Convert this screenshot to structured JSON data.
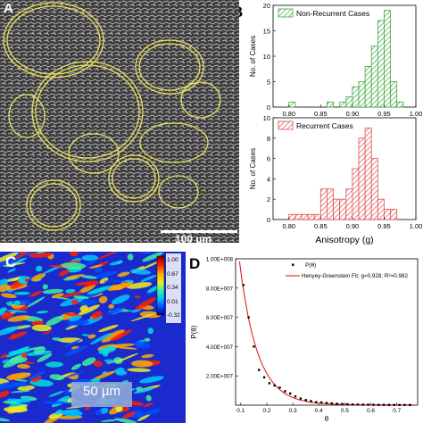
{
  "panel_a": {
    "label": "A",
    "scale_bar": "100 µm"
  },
  "panel_b": {
    "label": "B"
  },
  "panel_c": {
    "label": "C",
    "scale_bar": "50 µm",
    "colorbar": {
      "ticks": [
        "1.00",
        "0.67",
        "0.34",
        "0.01",
        "-0.32"
      ],
      "colors": [
        "#7a0000",
        "#ff2000",
        "#ffaa00",
        "#eeee20",
        "#40f0a0",
        "#00c8ff",
        "#0050ff",
        "#00008a"
      ]
    }
  },
  "panel_d": {
    "label": "D"
  },
  "chart_data": [
    {
      "type": "bar",
      "panel": "B (top)",
      "legend": "Non-Recurrent Cases",
      "color": "#3fa83f",
      "ylabel": "No. of Cases",
      "xlim": [
        0.775,
        1.0
      ],
      "ylim": [
        0,
        20
      ],
      "yticks": [
        0,
        5,
        10,
        15,
        20
      ],
      "xticks": [
        "0.80",
        "0.85",
        "0.90",
        "0.95",
        "1.00"
      ],
      "bin_width": 0.01,
      "bin_starts": [
        0.8,
        0.81,
        0.82,
        0.83,
        0.84,
        0.85,
        0.86,
        0.87,
        0.88,
        0.89,
        0.9,
        0.91,
        0.92,
        0.93,
        0.94,
        0.95,
        0.96,
        0.97
      ],
      "values": [
        1,
        0,
        0,
        0,
        0,
        0,
        1,
        0,
        1,
        2,
        4,
        5,
        8,
        12,
        17,
        19,
        5,
        1
      ]
    },
    {
      "type": "bar",
      "panel": "B (bottom)",
      "legend": "Recurrent Cases",
      "color": "#e05050",
      "ylabel": "No. of Cases",
      "xlabel": "Anisotropy (g)",
      "xlim": [
        0.775,
        1.0
      ],
      "ylim": [
        0,
        10
      ],
      "yticks": [
        0,
        2,
        4,
        6,
        8,
        10
      ],
      "xticks": [
        "0.80",
        "0.85",
        "0.90",
        "0.95",
        "1.00"
      ],
      "bin_width": 0.01,
      "bin_starts": [
        0.8,
        0.81,
        0.82,
        0.83,
        0.84,
        0.85,
        0.86,
        0.87,
        0.88,
        0.89,
        0.9,
        0.91,
        0.92,
        0.93,
        0.94,
        0.95,
        0.96,
        0.97
      ],
      "values": [
        0.5,
        0.5,
        0.5,
        0.5,
        0.5,
        3,
        3,
        2,
        2,
        3,
        5,
        8,
        9,
        6,
        2,
        1,
        1,
        0
      ]
    },
    {
      "type": "scatter",
      "panel": "D",
      "ylabel": "P(θ)",
      "xlabel": "θ",
      "xlim": [
        0.08,
        0.78
      ],
      "ylim": [
        0,
        100000000.0
      ],
      "xticks": [
        "0.1",
        "0.2",
        "0.3",
        "0.4",
        "0.5",
        "0.6",
        "0.7"
      ],
      "yticks": [
        "2.00E+007",
        "4.00E+007",
        "6.00E+007",
        "8.00E+007",
        "1.00E+008"
      ],
      "legend": [
        "P(θ)",
        "Henyey-Greenstein Fit; g=0.928; R²=0.982"
      ],
      "points": {
        "x": [
          0.11,
          0.13,
          0.15,
          0.17,
          0.19,
          0.21,
          0.23,
          0.25,
          0.27,
          0.29,
          0.31,
          0.33,
          0.35,
          0.37,
          0.39,
          0.41,
          0.43,
          0.45,
          0.47,
          0.49,
          0.51,
          0.53,
          0.55,
          0.57,
          0.59,
          0.61,
          0.63,
          0.65,
          0.67,
          0.69,
          0.71,
          0.73,
          0.75
        ],
        "y": [
          82000000,
          60000000,
          40000000,
          24000000,
          19000000,
          15000000,
          13500000,
          12000000,
          9500000,
          8000000,
          6000000,
          4500000,
          3500000,
          2800000,
          2000000,
          1800000,
          1500000,
          1200000,
          1000000,
          800000,
          600000,
          500000,
          400000,
          350000,
          300000,
          250000,
          200000,
          180000,
          150000,
          150000,
          120000,
          100000,
          100000
        ]
      },
      "fit_color": "#e02020"
    }
  ]
}
